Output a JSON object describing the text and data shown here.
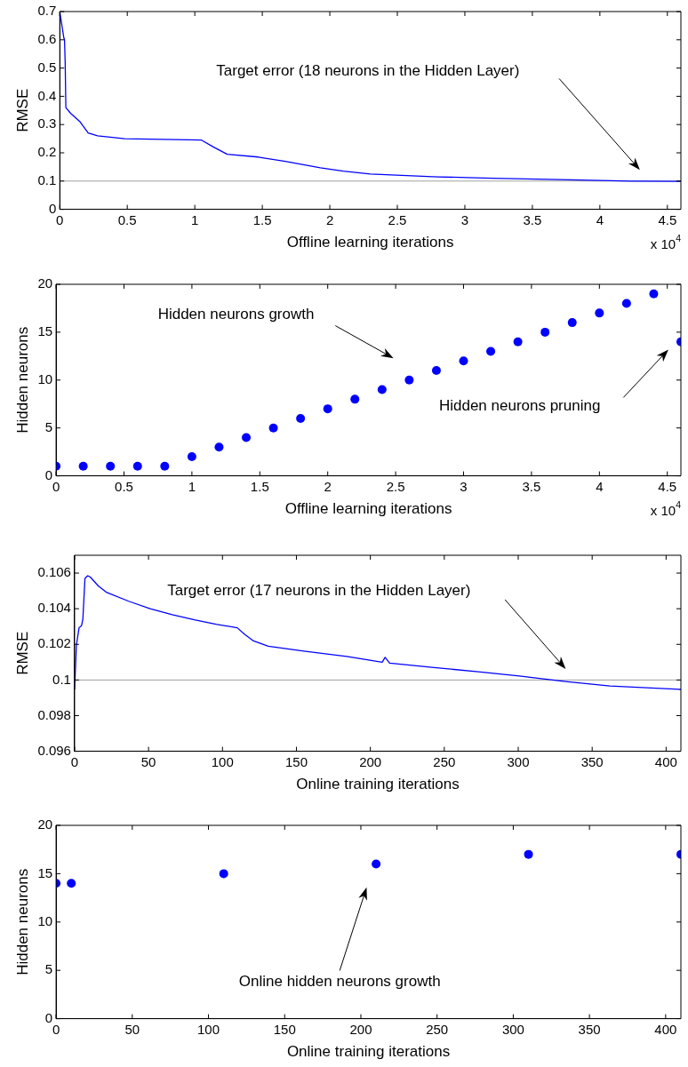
{
  "chart_data": [
    {
      "type": "line",
      "xlabel": "Offline learning iterations",
      "ylabel": "RMSE",
      "x": [
        0,
        0.03,
        0.035,
        0.04,
        0.045,
        0.08,
        0.15,
        0.21,
        0.28,
        0.48,
        1.05,
        1.14,
        1.24,
        1.47,
        1.67,
        1.93,
        2.1,
        2.3,
        2.8,
        3.2,
        3.7,
        4.23,
        4.6
      ],
      "series": [
        {
          "color": "#0000ff",
          "values": [
            0.7,
            0.607,
            0.6,
            0.52,
            0.36,
            0.34,
            0.31,
            0.27,
            0.26,
            0.25,
            0.245,
            0.22,
            0.195,
            0.185,
            0.17,
            0.147,
            0.135,
            0.125,
            0.115,
            0.11,
            0.105,
            0.1,
            0.099
          ]
        }
      ],
      "xlim": [
        0,
        4.6
      ],
      "ylim": [
        0,
        0.7
      ],
      "xticks": [
        0,
        0.5,
        1,
        1.5,
        2,
        2.5,
        3,
        3.5,
        4,
        4.5
      ],
      "yticks": [
        0,
        0.1,
        0.2,
        0.3,
        0.4,
        0.5,
        0.6,
        0.7
      ],
      "ref_lines": [
        {
          "axis": "y",
          "value": 0.1,
          "color": "#a0a0a0"
        }
      ],
      "annotations": [
        "Target error (18 neurons in the Hidden Layer)",
        "x 10$^{4}$"
      ],
      "marker": "none",
      "line_style": "solid",
      "grid": false,
      "legend": false
    },
    {
      "type": "scatter",
      "xlabel": "Offline learning iterations",
      "ylabel": "Hidden neurons",
      "x": [
        0,
        0.2,
        0.4,
        0.6,
        0.8,
        1,
        1.2,
        1.4,
        1.6,
        1.8,
        2,
        2.2,
        2.4,
        2.6,
        2.8,
        3,
        3.2,
        3.4,
        3.6,
        3.8,
        4,
        4.2,
        4.4,
        4.6
      ],
      "series": [
        {
          "color": "#0000ff",
          "values": [
            1,
            1,
            1,
            1,
            1,
            2,
            3,
            4,
            5,
            6,
            7,
            8,
            9,
            10,
            11,
            12,
            13,
            14,
            15,
            16,
            17,
            18,
            19,
            14
          ]
        }
      ],
      "xlim": [
        0,
        4.6
      ],
      "ylim": [
        0,
        20
      ],
      "xticks": [
        0,
        0.5,
        1,
        1.5,
        2,
        2.5,
        3,
        3.5,
        4,
        4.5
      ],
      "yticks": [
        0,
        5,
        10,
        15,
        20
      ],
      "annotations": [
        "Hidden neurons growth",
        "Hidden neurons pruning",
        "x 10$^{4}$"
      ],
      "marker": "circle",
      "grid": false,
      "legend": false
    },
    {
      "type": "line",
      "xlabel": "Online training iterations",
      "ylabel": "RMSE",
      "x": [
        0,
        1.2,
        3,
        4.7,
        5.6,
        7,
        8.9,
        10.6,
        16,
        21.8,
        36.6,
        51,
        66,
        81,
        95.6,
        110,
        115,
        121,
        131,
        155,
        184,
        208,
        210,
        213,
        243,
        273,
        302,
        332,
        362,
        410
      ],
      "series": [
        {
          "color": "#0000ff",
          "values": [
            0.09947,
            0.10194,
            0.10293,
            0.10305,
            0.10343,
            0.1057,
            0.10585,
            0.10578,
            0.10528,
            0.10491,
            0.10442,
            0.104,
            0.10367,
            0.10338,
            0.10313,
            0.10293,
            0.10256,
            0.10219,
            0.10189,
            0.10162,
            0.10132,
            0.101,
            0.10127,
            0.10095,
            0.1007,
            0.10046,
            0.10021,
            0.09991,
            0.09966,
            0.09947
          ]
        }
      ],
      "xlim": [
        0,
        410
      ],
      "ylim": [
        0.096,
        0.107
      ],
      "xticks": [
        0,
        50,
        100,
        150,
        200,
        250,
        300,
        350,
        400
      ],
      "yticks": [
        0.096,
        0.098,
        {
          "value": 0.1,
          "label": "0.1"
        },
        0.102,
        0.104,
        0.106
      ],
      "ref_lines": [
        {
          "axis": "y",
          "value": 0.1,
          "color": "#a0a0a0"
        }
      ],
      "annotations": [
        "Target error (17 neurons in the Hidden Layer)"
      ],
      "marker": "none",
      "line_style": "solid",
      "grid": false,
      "legend": false
    },
    {
      "type": "scatter",
      "xlabel": "Online training iterations",
      "ylabel": "Hidden neurons",
      "x": [
        0,
        10,
        110,
        210,
        310,
        410
      ],
      "series": [
        {
          "color": "#0000ff",
          "values": [
            14,
            14,
            15,
            16,
            17,
            17
          ]
        }
      ],
      "xlim": [
        0,
        410
      ],
      "ylim": [
        0,
        20
      ],
      "xticks": [
        0,
        50,
        100,
        150,
        200,
        250,
        300,
        350,
        400
      ],
      "yticks": [
        0,
        5,
        10,
        15,
        20
      ],
      "annotations": [
        "Online hidden neurons growth"
      ],
      "marker": "circle",
      "grid": false,
      "legend": false
    }
  ]
}
